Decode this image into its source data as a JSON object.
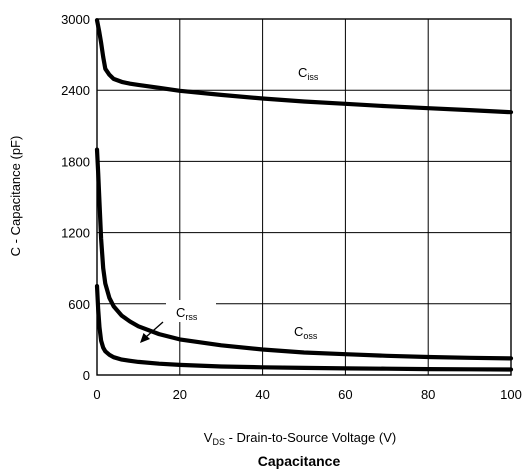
{
  "chart_data": {
    "type": "line",
    "title": "Capacitance",
    "xlabel": {
      "main": "V",
      "sub": "DS",
      "rest": " - Drain-to-Source Voltage (V)"
    },
    "ylabel": "C - Capacitance (pF)",
    "xlim": [
      0,
      100
    ],
    "ylim": [
      0,
      3000
    ],
    "xticks": [
      0,
      20,
      40,
      60,
      80,
      100
    ],
    "yticks": [
      0,
      600,
      1200,
      1800,
      2400,
      3000
    ],
    "grid": true,
    "series": [
      {
        "name": {
          "main": "C",
          "sub": "iss"
        },
        "x": [
          0,
          0.5,
          1,
          1.5,
          2,
          3,
          4,
          6,
          8,
          10,
          15,
          20,
          30,
          40,
          50,
          60,
          70,
          80,
          90,
          100
        ],
        "y": [
          2990,
          2900,
          2800,
          2680,
          2580,
          2530,
          2495,
          2470,
          2455,
          2445,
          2420,
          2395,
          2360,
          2330,
          2305,
          2285,
          2265,
          2248,
          2232,
          2215
        ]
      },
      {
        "name": {
          "main": "C",
          "sub": "oss"
        },
        "x": [
          0,
          0.3,
          0.6,
          1,
          1.5,
          2,
          3,
          4,
          6,
          8,
          10,
          15,
          20,
          30,
          40,
          50,
          60,
          70,
          80,
          90,
          100
        ],
        "y": [
          1900,
          1700,
          1450,
          1150,
          900,
          770,
          650,
          580,
          500,
          450,
          410,
          345,
          300,
          250,
          215,
          190,
          175,
          162,
          152,
          145,
          140
        ]
      },
      {
        "name": {
          "main": "C",
          "sub": "rss"
        },
        "x": [
          0,
          0.3,
          0.6,
          1,
          1.5,
          2,
          3,
          4,
          6,
          8,
          10,
          15,
          20,
          30,
          40,
          50,
          60,
          70,
          80,
          90,
          100
        ],
        "y": [
          750,
          550,
          400,
          290,
          230,
          200,
          170,
          150,
          130,
          120,
          110,
          95,
          85,
          72,
          65,
          60,
          56,
          53,
          50,
          48,
          46
        ]
      }
    ]
  }
}
